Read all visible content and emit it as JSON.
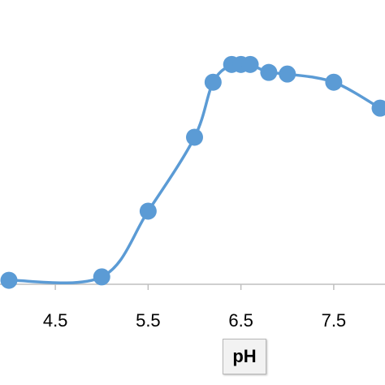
{
  "chart_data": {
    "type": "line",
    "title": "",
    "xlabel": "pH",
    "ylabel": "",
    "xlim": [
      3.95,
      8.05
    ],
    "ylim": [
      0,
      100
    ],
    "grid": false,
    "legend": "none",
    "smooth": true,
    "x_ticks": [
      4.5,
      5.5,
      6.5,
      7.5
    ],
    "x_tick_labels": [
      "4.5",
      "5.5",
      "6.5",
      "7.5"
    ],
    "series": [
      {
        "color": "#5b9bd5",
        "x": [
          4.0,
          5.0,
          5.5,
          6.0,
          6.2,
          6.4,
          6.5,
          6.6,
          6.8,
          7.0,
          7.5,
          8.0
        ],
        "y": [
          1.4,
          2.9,
          31.8,
          64.3,
          88.5,
          96.3,
          96.3,
          96.3,
          92.8,
          92.1,
          88.5,
          77.1
        ]
      }
    ]
  }
}
